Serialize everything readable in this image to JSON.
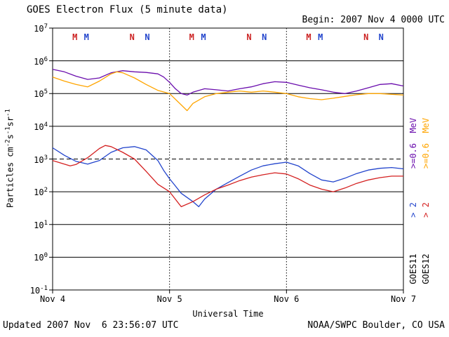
{
  "header": {
    "title": "GOES Electron Flux (5 minute data)",
    "begin": "Begin: 2007 Nov 4 0000 UTC"
  },
  "y_axis": {
    "base": "10",
    "tick_exponents": [
      "7",
      "6",
      "5",
      "4",
      "3",
      "2",
      "1",
      "0",
      "-1"
    ],
    "label_parts": [
      {
        "text": "Particles cm"
      },
      {
        "text": "-2",
        "sup": true
      },
      {
        "text": "s"
      },
      {
        "text": "-1",
        "sup": true
      },
      {
        "text": "sr"
      },
      {
        "text": "-1",
        "sup": true
      }
    ]
  },
  "x_axis": {
    "label": "Universal Time",
    "ticks": [
      "Nov 4",
      "Nov 5",
      "Nov 6",
      "Nov 7"
    ]
  },
  "legend": {
    "goes11": {
      "low": ">=0.6  MeV",
      "high": "> 2",
      "name": "GOES11",
      "low_color": "#6a0dad",
      "high_color": "#2244cc"
    },
    "goes12": {
      "low": ">=0.6  MeV",
      "high": "> 2",
      "name": "GOES12",
      "low_color": "#ffa500",
      "high_color": "#d42020"
    }
  },
  "footer": {
    "updated": "Updated 2007 Nov  6 23:56:07 UTC",
    "source": "NOAA/SWPC Boulder, CO USA"
  },
  "chart_data": {
    "type": "line",
    "title": "GOES Electron Flux (5 minute data)",
    "xlabel": "Universal Time",
    "ylabel": "Particles cm-2 s-1 sr-1",
    "x_unit_days_from": "2007 Nov 4 0000 UTC",
    "x_range_days": [
      0,
      3
    ],
    "x_ticks": [
      "Nov 4",
      "Nov 5",
      "Nov 6",
      "Nov 7"
    ],
    "y_scale": "log10",
    "y_exponent_range": [
      -1,
      7
    ],
    "threshold": {
      "value": 1000,
      "style": "dashed"
    },
    "day_boundaries": [
      1,
      2
    ],
    "series": [
      {
        "name": "GOES11 >=0.6 MeV",
        "color": "#6a0dad",
        "points": [
          [
            0,
            550000.0
          ],
          [
            0.1,
            460000.0
          ],
          [
            0.2,
            340000.0
          ],
          [
            0.3,
            270000.0
          ],
          [
            0.4,
            300000.0
          ],
          [
            0.5,
            430000.0
          ],
          [
            0.6,
            500000.0
          ],
          [
            0.7,
            460000.0
          ],
          [
            0.8,
            440000.0
          ],
          [
            0.9,
            400000.0
          ],
          [
            0.95,
            320000.0
          ],
          [
            1.0,
            220000.0
          ],
          [
            1.05,
            140000.0
          ],
          [
            1.1,
            100000.0
          ],
          [
            1.15,
            90000.0
          ],
          [
            1.2,
            110000.0
          ],
          [
            1.3,
            140000.0
          ],
          [
            1.4,
            130000.0
          ],
          [
            1.5,
            120000.0
          ],
          [
            1.6,
            140000.0
          ],
          [
            1.7,
            160000.0
          ],
          [
            1.8,
            200000.0
          ],
          [
            1.9,
            230000.0
          ],
          [
            2.0,
            220000.0
          ],
          [
            2.1,
            180000.0
          ],
          [
            2.2,
            150000.0
          ],
          [
            2.3,
            130000.0
          ],
          [
            2.4,
            110000.0
          ],
          [
            2.5,
            100000.0
          ],
          [
            2.6,
            120000.0
          ],
          [
            2.7,
            150000.0
          ],
          [
            2.8,
            190000.0
          ],
          [
            2.9,
            200000.0
          ],
          [
            3.0,
            170000.0
          ]
        ]
      },
      {
        "name": "GOES12 >=0.6 MeV",
        "color": "#ffa500",
        "points": [
          [
            0,
            320000.0
          ],
          [
            0.1,
            240000.0
          ],
          [
            0.2,
            190000.0
          ],
          [
            0.3,
            160000.0
          ],
          [
            0.4,
            240000.0
          ],
          [
            0.5,
            400000.0
          ],
          [
            0.55,
            460000.0
          ],
          [
            0.6,
            430000.0
          ],
          [
            0.7,
            300000.0
          ],
          [
            0.8,
            190000.0
          ],
          [
            0.9,
            125000.0
          ],
          [
            1.0,
            100000.0
          ],
          [
            1.1,
            45000.0
          ],
          [
            1.15,
            30000.0
          ],
          [
            1.2,
            50000.0
          ],
          [
            1.3,
            80000.0
          ],
          [
            1.4,
            100000.0
          ],
          [
            1.5,
            110000.0
          ],
          [
            1.6,
            120000.0
          ],
          [
            1.7,
            110000.0
          ],
          [
            1.8,
            120000.0
          ],
          [
            1.9,
            110000.0
          ],
          [
            2.0,
            100000.0
          ],
          [
            2.1,
            80000.0
          ],
          [
            2.2,
            70000.0
          ],
          [
            2.3,
            65000.0
          ],
          [
            2.4,
            72000.0
          ],
          [
            2.5,
            82000.0
          ],
          [
            2.6,
            92000.0
          ],
          [
            2.7,
            100000.0
          ],
          [
            2.8,
            100000.0
          ],
          [
            2.9,
            95000.0
          ],
          [
            3.0,
            90000.0
          ]
        ]
      },
      {
        "name": "GOES11 > 2 MeV",
        "color": "#2244cc",
        "points": [
          [
            0,
            2200.0
          ],
          [
            0.1,
            1300.0
          ],
          [
            0.2,
            850.0
          ],
          [
            0.3,
            700.0
          ],
          [
            0.4,
            900.0
          ],
          [
            0.5,
            1600.0
          ],
          [
            0.6,
            2200.0
          ],
          [
            0.7,
            2400.0
          ],
          [
            0.8,
            1900.0
          ],
          [
            0.9,
            900.0
          ],
          [
            0.95,
            450.0
          ],
          [
            1.0,
            250.0
          ],
          [
            1.05,
            150.0
          ],
          [
            1.1,
            90.0
          ],
          [
            1.2,
            50.0
          ],
          [
            1.25,
            35.0
          ],
          [
            1.3,
            60.0
          ],
          [
            1.4,
            120.0
          ],
          [
            1.5,
            190.0
          ],
          [
            1.6,
            300.0
          ],
          [
            1.7,
            460.0
          ],
          [
            1.8,
            620.0
          ],
          [
            1.9,
            720.0
          ],
          [
            2.0,
            800.0
          ],
          [
            2.1,
            620.0
          ],
          [
            2.2,
            360.0
          ],
          [
            2.3,
            230.0
          ],
          [
            2.4,
            200.0
          ],
          [
            2.5,
            260.0
          ],
          [
            2.6,
            360.0
          ],
          [
            2.7,
            460.0
          ],
          [
            2.8,
            520.0
          ],
          [
            2.9,
            550.0
          ],
          [
            3.0,
            500.0
          ]
        ]
      },
      {
        "name": "GOES12 > 2 MeV",
        "color": "#d42020",
        "points": [
          [
            0,
            900.0
          ],
          [
            0.1,
            700.0
          ],
          [
            0.15,
            620.0
          ],
          [
            0.2,
            680.0
          ],
          [
            0.3,
            1100.0
          ],
          [
            0.4,
            2100.0
          ],
          [
            0.45,
            2600.0
          ],
          [
            0.5,
            2400.0
          ],
          [
            0.6,
            1600.0
          ],
          [
            0.7,
            1000.0
          ],
          [
            0.8,
            420.0
          ],
          [
            0.9,
            170.0
          ],
          [
            1.0,
            100.0
          ],
          [
            1.1,
            35.0
          ],
          [
            1.2,
            50.0
          ],
          [
            1.3,
            80.0
          ],
          [
            1.4,
            120.0
          ],
          [
            1.5,
            160.0
          ],
          [
            1.6,
            220.0
          ],
          [
            1.7,
            280.0
          ],
          [
            1.8,
            330.0
          ],
          [
            1.9,
            380.0
          ],
          [
            2.0,
            350.0
          ],
          [
            2.1,
            250.0
          ],
          [
            2.2,
            160.0
          ],
          [
            2.3,
            120.0
          ],
          [
            2.4,
            100.0
          ],
          [
            2.5,
            130.0
          ],
          [
            2.6,
            180.0
          ],
          [
            2.7,
            230.0
          ],
          [
            2.8,
            270.0
          ],
          [
            2.9,
            300.0
          ],
          [
            3.0,
            300.0
          ]
        ]
      }
    ],
    "time_markers": [
      {
        "t": 0.19,
        "label": "M",
        "color": "#cc2222"
      },
      {
        "t": 0.29,
        "label": "M",
        "color": "#2244cc"
      },
      {
        "t": 0.68,
        "label": "N",
        "color": "#cc2222"
      },
      {
        "t": 0.81,
        "label": "N",
        "color": "#2244cc"
      },
      {
        "t": 1.19,
        "label": "M",
        "color": "#cc2222"
      },
      {
        "t": 1.29,
        "label": "M",
        "color": "#2244cc"
      },
      {
        "t": 1.68,
        "label": "N",
        "color": "#cc2222"
      },
      {
        "t": 1.81,
        "label": "N",
        "color": "#2244cc"
      },
      {
        "t": 2.19,
        "label": "M",
        "color": "#cc2222"
      },
      {
        "t": 2.29,
        "label": "M",
        "color": "#2244cc"
      },
      {
        "t": 2.68,
        "label": "N",
        "color": "#cc2222"
      },
      {
        "t": 2.81,
        "label": "N",
        "color": "#2244cc"
      }
    ]
  }
}
